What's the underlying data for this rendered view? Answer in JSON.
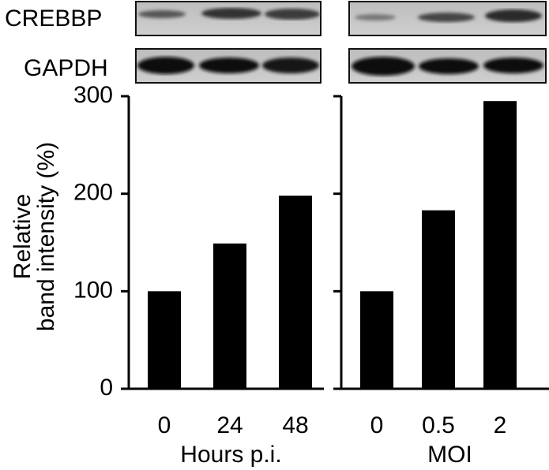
{
  "blot_labels": [
    "CREBBP",
    "GAPDH"
  ],
  "chart_data": [
    {
      "type": "bar",
      "categories": [
        "0",
        "24",
        "48"
      ],
      "values": [
        100,
        149,
        198
      ],
      "color": "#000000",
      "xlabel": "Hours p.i.",
      "ylabel": [
        "Relative",
        "band intensity (%)"
      ],
      "ylim": [
        0,
        300
      ],
      "yticks": [
        0,
        100,
        200,
        300
      ],
      "ytick_labels": true
    },
    {
      "type": "bar",
      "categories": [
        "0",
        "0.5",
        "2"
      ],
      "values": [
        100,
        183,
        295
      ],
      "color": "#000000",
      "xlabel": "MOI",
      "ylim": [
        0,
        300
      ],
      "yticks": [
        0,
        100,
        200,
        300
      ],
      "ytick_labels": false
    }
  ]
}
